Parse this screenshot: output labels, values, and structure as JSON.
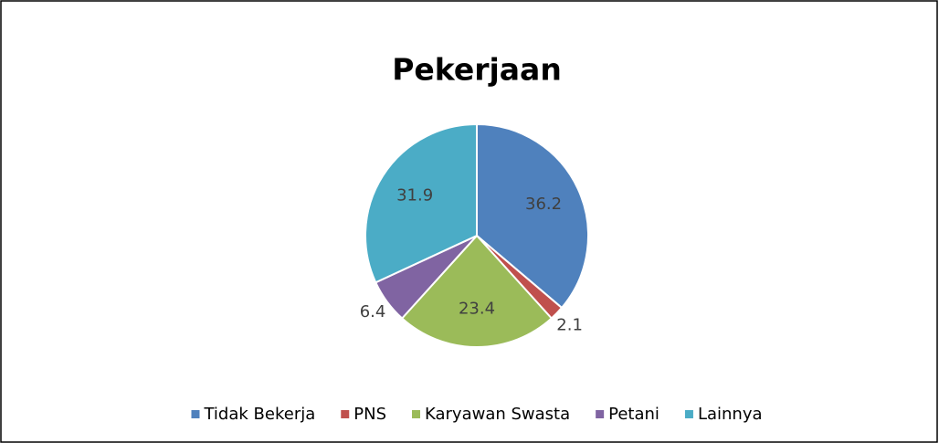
{
  "chart_data": {
    "type": "pie",
    "title": "Pekerjaan",
    "categories": [
      "Tidak Bekerja",
      "PNS",
      "Karyawan Swasta",
      "Petani",
      "Lainnya"
    ],
    "values": [
      36.2,
      2.1,
      23.4,
      6.4,
      31.9
    ],
    "colors": [
      "#4f81bd",
      "#c0504d",
      "#9bbb59",
      "#8064a2",
      "#4bacc6"
    ],
    "legend": "bottom"
  }
}
